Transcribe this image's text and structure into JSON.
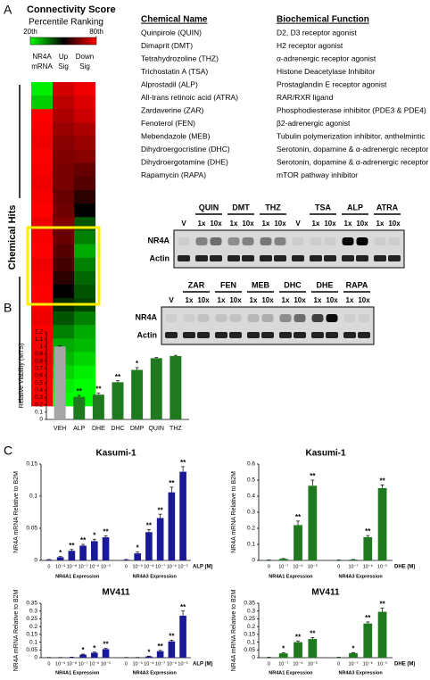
{
  "panel_a": {
    "label": "A",
    "heatmap": {
      "title": "Connectivity Score",
      "subtitle": "Percentile Ranking",
      "scale_ticks": [
        {
          "value": 20,
          "label": "20th"
        },
        {
          "value": 80,
          "label": "80th"
        }
      ],
      "colors": [
        "#00ff00",
        "#000000",
        "#ff0000"
      ],
      "columns": [
        [
          "NR4A",
          "mRNA"
        ],
        [
          "Up",
          "Sig"
        ],
        [
          "Down",
          "Sig"
        ]
      ],
      "side_label": "Chemical Hits",
      "rows": [
        [
          22,
          75,
          78
        ],
        [
          26,
          72,
          76
        ],
        [
          80,
          70,
          74
        ],
        [
          79,
          68,
          70
        ],
        [
          78,
          66,
          68
        ],
        [
          80,
          65,
          66
        ],
        [
          79,
          64,
          62
        ],
        [
          78,
          64,
          60
        ],
        [
          79,
          62,
          55
        ],
        [
          80,
          63,
          50
        ],
        [
          78,
          65,
          40
        ],
        [
          79,
          62,
          35
        ],
        [
          80,
          60,
          30
        ],
        [
          78,
          58,
          35
        ],
        [
          79,
          55,
          38
        ],
        [
          80,
          50,
          40
        ],
        [
          79,
          45,
          42
        ],
        [
          78,
          40,
          35
        ],
        [
          80,
          35,
          30
        ],
        [
          79,
          30,
          28
        ],
        [
          78,
          28,
          25
        ],
        [
          79,
          25,
          22
        ],
        [
          80,
          22,
          20
        ],
        [
          79,
          20,
          20
        ]
      ]
    },
    "table": {
      "headers": [
        "Chemical Name",
        "Biochemical Function"
      ],
      "rows": [
        [
          "Quinpirole (QUIN)",
          "D2, D3 receptor agonist"
        ],
        [
          "Dimaprit (DMT)",
          "H2 receptor agonist"
        ],
        [
          "Tetrahydrozoline (THZ)",
          "α-adrenergic receptor agonist"
        ],
        [
          "Trichostatin A (TSA)",
          "Histone Deacetylase Inhibitor"
        ],
        [
          "Alprostadil (ALP)",
          "Prostaglandin E receptor agonist"
        ],
        [
          "All-trans retinoic acid (ATRA)",
          "RAR/RXR ligand"
        ],
        [
          "Zardaverine (ZAR)",
          "Phosphodiesterase inhibitor (PDE3 & PDE4)"
        ],
        [
          "Fenoterol (FEN)",
          "β2-adrenergic agonist"
        ],
        [
          "Mebendazole (MEB)",
          "Tubulin polymerization inhibitor, anthelmintic"
        ],
        [
          "Dihydroergocristine (DHC)",
          "Serotonin, dopamine & α-adrenergic receptor agonist"
        ],
        [
          "Dihydroergotamine (DHE)",
          "Serotonin, dopamine & α-adrenergic receptor agonist"
        ],
        [
          "Rapamycin (RAPA)",
          "mTOR pathway inhibitor"
        ]
      ]
    },
    "blots": [
      {
        "row_labels": [
          "NR4A",
          "Actin"
        ],
        "groups": [
          {
            "lanes": [
              "V"
            ],
            "nr4a": [
              0.05
            ]
          },
          {
            "name": "QUIN",
            "lanes": [
              "1x",
              "10x"
            ],
            "nr4a": [
              0.4,
              0.5
            ]
          },
          {
            "name": "DMT",
            "lanes": [
              "1x",
              "10x"
            ],
            "nr4a": [
              0.35,
              0.4
            ]
          },
          {
            "name": "THZ",
            "lanes": [
              "1x",
              "10x"
            ],
            "nr4a": [
              0.45,
              0.4
            ]
          },
          {
            "lanes": [
              "V"
            ],
            "nr4a": [
              0.05
            ]
          },
          {
            "name": "TSA",
            "lanes": [
              "1x",
              "10x"
            ],
            "nr4a": [
              0.05,
              0.05
            ]
          },
          {
            "name": "ALP",
            "lanes": [
              "1x",
              "10x"
            ],
            "nr4a": [
              0.95,
              1.0
            ]
          },
          {
            "name": "ATRA",
            "lanes": [
              "1x",
              "10x"
            ],
            "nr4a": [
              0.05,
              0.05
            ]
          }
        ]
      },
      {
        "row_labels": [
          "NR4A",
          "Actin"
        ],
        "groups": [
          {
            "lanes": [
              "V"
            ],
            "nr4a": [
              0.05
            ]
          },
          {
            "name": "ZAR",
            "lanes": [
              "1x",
              "10x"
            ],
            "nr4a": [
              0.05,
              0.1
            ]
          },
          {
            "name": "FEN",
            "lanes": [
              "1x",
              "10x"
            ],
            "nr4a": [
              0.1,
              0.1
            ]
          },
          {
            "name": "MEB",
            "lanes": [
              "1x",
              "10x"
            ],
            "nr4a": [
              0.15,
              0.2
            ]
          },
          {
            "name": "DHC",
            "lanes": [
              "1x",
              "10x"
            ],
            "nr4a": [
              0.35,
              0.5
            ]
          },
          {
            "name": "DHE",
            "lanes": [
              "1x",
              "10x"
            ],
            "nr4a": [
              0.7,
              0.95
            ]
          },
          {
            "name": "RAPA",
            "lanes": [
              "1x",
              "10x"
            ],
            "nr4a": [
              0.05,
              0.05
            ]
          }
        ]
      }
    ]
  },
  "chart_data": [
    {
      "type": "bar",
      "panel_label": "B",
      "ylabel": "Relative Viability (MTS)",
      "categories": [
        "VEH",
        "ALP",
        "DHE",
        "DHC",
        "DMP",
        "QUIN",
        "THZ"
      ],
      "values": [
        1.0,
        0.31,
        0.34,
        0.51,
        0.68,
        0.84,
        0.87
      ],
      "errors": [
        0.01,
        0.02,
        0.02,
        0.02,
        0.03,
        0.01,
        0.01
      ],
      "significance": [
        null,
        "**",
        "**",
        "**",
        "*",
        null,
        null
      ],
      "colors": [
        "#a6a6a6",
        "#1f7a1f",
        "#1f7a1f",
        "#1f7a1f",
        "#1f7a1f",
        "#1f7a1f",
        "#1f7a1f"
      ],
      "ylim": [
        0,
        1.2
      ],
      "yticks": [
        0,
        0.1,
        0.2,
        0.3,
        0.4,
        0.5,
        0.6,
        0.7,
        0.8,
        0.9,
        1,
        1.1,
        1.2
      ]
    },
    {
      "type": "bar",
      "panel_label": "C",
      "title": "Kasumi-1",
      "ylabel": "NR4A mRNA Relative to B2M",
      "xlabel": "ALP (M)",
      "color": "#1a1a99",
      "groups": [
        {
          "name": "NR4A1 Expression",
          "categories": [
            "0",
            "10⁻⁹",
            "10⁻⁸",
            "10⁻⁷",
            "10⁻⁶",
            "10⁻⁵"
          ],
          "values": [
            0.001,
            0.005,
            0.015,
            0.023,
            0.03,
            0.036
          ],
          "errors": [
            0.0005,
            0.001,
            0.002,
            0.002,
            0.003,
            0.002
          ],
          "significance": [
            null,
            "*",
            "**",
            "**",
            "*",
            "**"
          ]
        },
        {
          "name": "NR4A3 Expression",
          "categories": [
            "0",
            "10⁻⁹",
            "10⁻⁸",
            "10⁻⁷",
            "10⁻⁶",
            "10⁻⁵"
          ],
          "values": [
            0.001,
            0.011,
            0.044,
            0.066,
            0.106,
            0.138
          ],
          "errors": [
            0.0005,
            0.002,
            0.004,
            0.006,
            0.008,
            0.008
          ],
          "significance": [
            null,
            "*",
            "**",
            "**",
            "**",
            "**"
          ]
        }
      ],
      "ylim": [
        0,
        0.15
      ],
      "yticks": [
        0,
        0.05,
        0.1,
        0.15
      ]
    },
    {
      "type": "bar",
      "title": "Kasumi-1",
      "ylabel": "NR4A mRNA Relative to B2M",
      "xlabel": "DHE (M)",
      "color": "#1f7a1f",
      "groups": [
        {
          "name": "NR4A1 Expression",
          "categories": [
            "0",
            "10⁻⁷",
            "10⁻⁶",
            "10⁻⁵"
          ],
          "values": [
            0.002,
            0.01,
            0.22,
            0.465
          ],
          "errors": [
            0.001,
            0.002,
            0.025,
            0.035
          ],
          "significance": [
            null,
            null,
            "**",
            "**"
          ]
        },
        {
          "name": "NR4A3 Expression",
          "categories": [
            "0",
            "10⁻⁷",
            "10⁻⁶",
            "10⁻⁵"
          ],
          "values": [
            0.002,
            0.005,
            0.145,
            0.45
          ],
          "errors": [
            0.001,
            0.001,
            0.01,
            0.02
          ],
          "significance": [
            null,
            null,
            "**",
            "**"
          ]
        }
      ],
      "ylim": [
        0,
        0.6
      ],
      "yticks": [
        0,
        0.1,
        0.2,
        0.3,
        0.4,
        0.5,
        0.6
      ]
    },
    {
      "type": "bar",
      "title": "MV411",
      "ylabel": "NR4A mRNA Relative to B2M",
      "xlabel": "ALP (M)",
      "color": "#1a1a99",
      "groups": [
        {
          "name": "NR4A1 Expression",
          "categories": [
            "0",
            "10⁻⁹",
            "10⁻⁸",
            "10⁻⁷",
            "10⁻⁶",
            "10⁻⁵"
          ],
          "values": [
            0.001,
            0.001,
            0.003,
            0.02,
            0.032,
            0.055
          ],
          "errors": [
            0.0005,
            0.0005,
            0.001,
            0.003,
            0.004,
            0.005
          ],
          "significance": [
            null,
            null,
            null,
            "*",
            "*",
            "**"
          ]
        },
        {
          "name": "NR4A3 Expression",
          "categories": [
            "0",
            "10⁻⁹",
            "10⁻⁸",
            "10⁻⁷",
            "10⁻⁶",
            "10⁻⁵"
          ],
          "values": [
            0.001,
            0.001,
            0.008,
            0.042,
            0.105,
            0.27
          ],
          "errors": [
            0.0005,
            0.0005,
            0.002,
            0.005,
            0.008,
            0.03
          ],
          "significance": [
            null,
            null,
            "*",
            "**",
            "**",
            "**"
          ]
        }
      ],
      "ylim": [
        0,
        0.35
      ],
      "yticks": [
        0,
        0.05,
        0.1,
        0.15,
        0.2,
        0.25,
        0.3,
        0.35
      ]
    },
    {
      "type": "bar",
      "title": "MV411",
      "ylabel": "NR4A mRNA Relative to B2M",
      "xlabel": "DHE (M)",
      "color": "#1f7a1f",
      "groups": [
        {
          "name": "NR4A1 Expression",
          "categories": [
            "0",
            "10⁻⁷",
            "10⁻⁶",
            "10⁻⁵"
          ],
          "values": [
            0.002,
            0.028,
            0.1,
            0.12
          ],
          "errors": [
            0.001,
            0.003,
            0.008,
            0.01
          ],
          "significance": [
            null,
            "*",
            "**",
            "**"
          ]
        },
        {
          "name": "NR4A3 Expression",
          "categories": [
            "0",
            "10⁻⁷",
            "10⁻⁶",
            "10⁻⁵"
          ],
          "values": [
            0.002,
            0.03,
            0.22,
            0.295
          ],
          "errors": [
            0.001,
            0.003,
            0.01,
            0.025
          ],
          "significance": [
            null,
            "*",
            "**",
            "**"
          ]
        }
      ],
      "ylim": [
        0,
        0.35
      ],
      "yticks": [
        0,
        0.05,
        0.1,
        0.15,
        0.2,
        0.25,
        0.3,
        0.35
      ]
    }
  ]
}
